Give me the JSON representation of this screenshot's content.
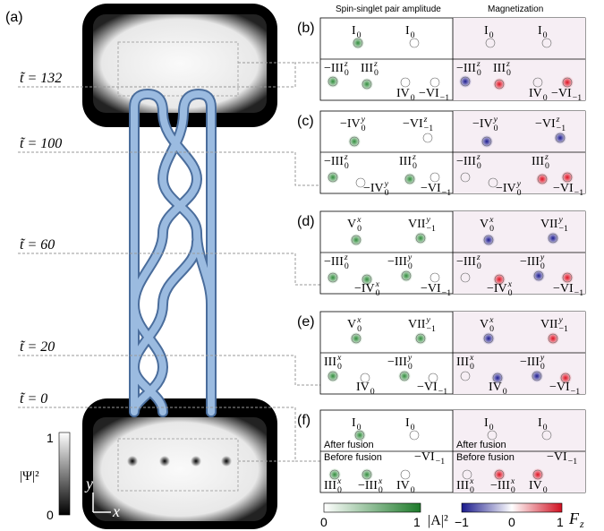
{
  "panel_a": {
    "label": "(a)",
    "times": [
      "t̃ = 132",
      "t̃ = 100",
      "t̃ = 60",
      "t̃ = 20",
      "t̃ = 0"
    ],
    "colorbar": {
      "max": "1",
      "min": "0",
      "title": "|Ψ|²"
    },
    "axes": {
      "y": "y",
      "x": "x"
    }
  },
  "headers": [
    "Spin-singlet pair amplitude",
    "Magnetization"
  ],
  "panels": [
    {
      "label": "(b)",
      "top": [
        {
          "base": "I",
          "sub": "0"
        },
        {
          "base": "I",
          "sub": "0"
        }
      ],
      "bottom": [
        {
          "base": "−III",
          "sup": "z",
          "sub": "0"
        },
        {
          "base": "III",
          "sup": "z",
          "sub": "0"
        },
        {
          "base": "IV",
          "sub": "0"
        },
        {
          "base": "−VI",
          "sub": "−1"
        }
      ]
    },
    {
      "label": "(c)",
      "top": [
        {
          "base": "−IV",
          "sup": "y",
          "sub": "0"
        },
        {
          "base": "−VI",
          "sup": "z",
          "sub": "−1"
        }
      ],
      "bottom": [
        {
          "base": "−III",
          "sup": "z",
          "sub": "0"
        },
        {
          "base": "III",
          "sup": "z",
          "sub": "0"
        },
        {
          "base": "−IV",
          "sup": "y",
          "sub": "0"
        },
        {
          "base": "−VI",
          "sub": "−1"
        }
      ]
    },
    {
      "label": "(d)",
      "top": [
        {
          "base": "V",
          "sup": "x",
          "sub": "0"
        },
        {
          "base": "VII",
          "sup": "y",
          "sub": "−1"
        }
      ],
      "bottom": [
        {
          "base": "−III",
          "sup": "z",
          "sub": "0"
        },
        {
          "base": "−III",
          "sup": "y",
          "sub": "0"
        },
        {
          "base": "−IV",
          "sup": "x",
          "sub": "0"
        },
        {
          "base": "−VI",
          "sub": "−1"
        }
      ]
    },
    {
      "label": "(e)",
      "top": [
        {
          "base": "V",
          "sup": "x",
          "sub": "0"
        },
        {
          "base": "VII",
          "sup": "y",
          "sub": "−1"
        }
      ],
      "bottom": [
        {
          "base": "III",
          "sup": "x",
          "sub": "0"
        },
        {
          "base": "−III",
          "sup": "y",
          "sub": "0"
        },
        {
          "base": "IV",
          "sub": "0"
        },
        {
          "base": "−VI",
          "sub": "−1"
        }
      ]
    },
    {
      "label": "(f)",
      "top": [
        {
          "base": "I",
          "sub": "0"
        },
        {
          "base": "I",
          "sub": "0"
        },
        {
          "base": "After fusion"
        }
      ],
      "bottom": [
        {
          "base": "Before fusion"
        },
        {
          "base": "−VI",
          "sub": "−1"
        },
        {
          "base": "III",
          "sup": "x",
          "sub": "0"
        },
        {
          "base": "−III",
          "sup": "x",
          "sub": "0"
        },
        {
          "base": "IV",
          "sub": "0"
        }
      ]
    }
  ],
  "colorbars": [
    {
      "min": "0",
      "max": "1",
      "title": "|A|²"
    },
    {
      "min": "−1",
      "mid": "0",
      "max": "1",
      "title": {
        "base": "F",
        "sub": "z"
      }
    }
  ]
}
